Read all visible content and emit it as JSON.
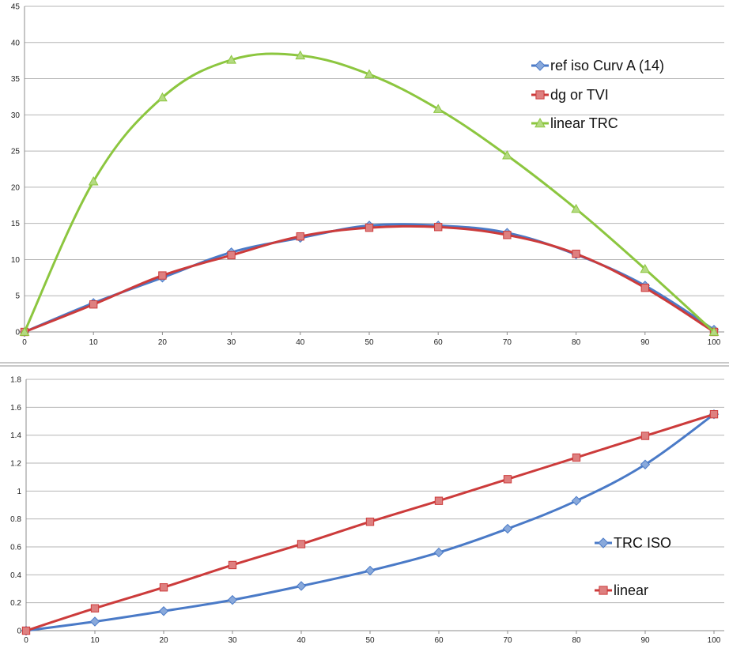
{
  "chart_data": [
    {
      "type": "line",
      "x": [
        0,
        10,
        20,
        30,
        40,
        50,
        60,
        70,
        80,
        90,
        100
      ],
      "xlim": [
        0,
        100
      ],
      "ylim": [
        0,
        45
      ],
      "x_ticks": [
        0,
        10,
        20,
        30,
        40,
        50,
        60,
        70,
        80,
        90,
        100
      ],
      "y_ticks": [
        0,
        5,
        10,
        15,
        20,
        25,
        30,
        35,
        40,
        45
      ],
      "grid": true,
      "legend_position": "right",
      "series": [
        {
          "name": "ref iso Curv A (14)",
          "color": "#4a7ac7",
          "marker": "diamond",
          "values": [
            0,
            4,
            7.5,
            11,
            13,
            14.7,
            14.7,
            13.7,
            10.7,
            6.4,
            0.3
          ]
        },
        {
          "name": "dg or TVI",
          "color": "#cc3b3b",
          "marker": "square",
          "values": [
            0,
            3.8,
            7.8,
            10.6,
            13.2,
            14.4,
            14.5,
            13.4,
            10.8,
            6.1,
            0
          ]
        },
        {
          "name": "linear TRC",
          "color": "#8cc63f",
          "marker": "triangle",
          "values": [
            0,
            20.8,
            32.4,
            37.6,
            38.2,
            35.6,
            30.8,
            24.4,
            17,
            8.7,
            0
          ]
        }
      ]
    },
    {
      "type": "line",
      "x": [
        0,
        10,
        20,
        30,
        40,
        50,
        60,
        70,
        80,
        90,
        100
      ],
      "xlim": [
        0,
        100
      ],
      "ylim": [
        0,
        1.8
      ],
      "x_ticks": [
        0,
        10,
        20,
        30,
        40,
        50,
        60,
        70,
        80,
        90,
        100
      ],
      "y_ticks": [
        "0",
        "0.2",
        "0.4",
        "0.6",
        "0.8",
        "1",
        "1.2",
        "1.4",
        "1.6",
        "1.8"
      ],
      "grid": true,
      "legend_position": "right",
      "series": [
        {
          "name": "TRC ISO",
          "color": "#4a7ac7",
          "marker": "diamond",
          "values": [
            0,
            0.065,
            0.14,
            0.22,
            0.32,
            0.43,
            0.56,
            0.73,
            0.93,
            1.19,
            1.55
          ]
        },
        {
          "name": "linear",
          "color": "#cc3b3b",
          "marker": "square",
          "values": [
            0,
            0.16,
            0.31,
            0.47,
            0.62,
            0.78,
            0.93,
            1.085,
            1.24,
            1.395,
            1.55
          ]
        }
      ]
    }
  ]
}
